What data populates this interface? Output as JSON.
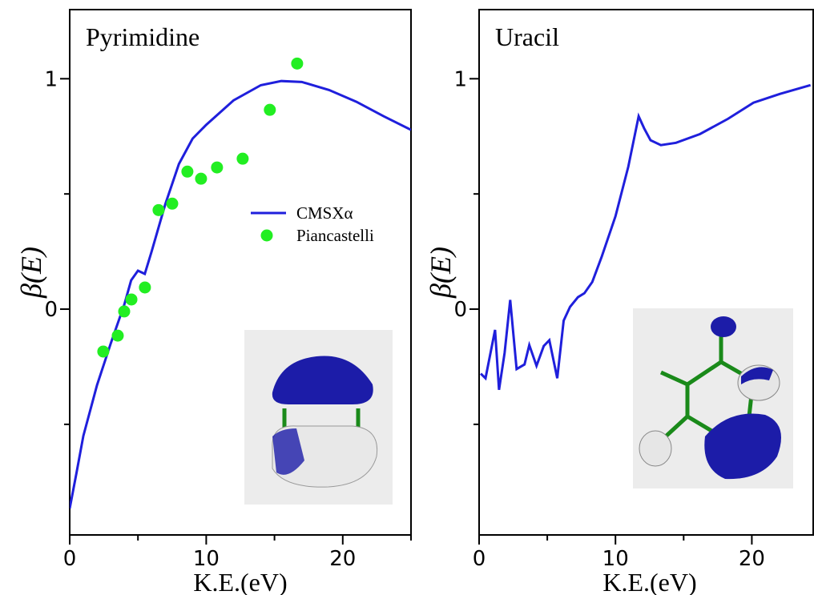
{
  "chart_data": [
    {
      "type": "line",
      "title": "Pyrimidine",
      "xlabel": "K.E.(eV)",
      "ylabel": "β(E)",
      "xlim": [
        0,
        25
      ],
      "xticks": [
        0,
        10,
        20
      ],
      "xminor": [
        5,
        15,
        25
      ],
      "ylim": [
        -0.98,
        1.3
      ],
      "yticks": [
        0,
        1
      ],
      "yminor": [
        -0.5,
        0.5
      ],
      "legend": "right",
      "series": [
        {
          "name": "CMSXα",
          "color": "#1f1fdc",
          "style": "line",
          "x": [
            0,
            0.5,
            1,
            2,
            3,
            4,
            4.5,
            5,
            5.5,
            6,
            7,
            8,
            9,
            10,
            12,
            14,
            15.5,
            17,
            19,
            21,
            23,
            25
          ],
          "values": [
            -0.865,
            -0.71,
            -0.55,
            -0.33,
            -0.15,
            0.02,
            0.125,
            0.167,
            0.153,
            0.25,
            0.455,
            0.63,
            0.74,
            0.8,
            0.906,
            0.972,
            0.99,
            0.986,
            0.951,
            0.9,
            0.837,
            0.778
          ]
        },
        {
          "name": "Piancastelli",
          "color": "#22ee22",
          "style": "markers",
          "x": [
            2.46,
            3.52,
            3.99,
            4.52,
            5.51,
            6.51,
            7.51,
            8.62,
            9.62,
            10.79,
            12.67,
            14.66,
            16.66
          ],
          "values": [
            -0.184,
            -0.115,
            -0.01,
            0.042,
            0.094,
            0.43,
            0.458,
            0.597,
            0.566,
            0.615,
            0.653,
            0.865,
            1.066
          ]
        }
      ]
    },
    {
      "type": "line",
      "title": "Uracil",
      "xlabel": "K.E.(eV)",
      "ylabel": "β(E)",
      "xlim": [
        0,
        24.5
      ],
      "xticks": [
        0,
        10,
        20
      ],
      "xminor": [
        5,
        15
      ],
      "ylim": [
        -0.98,
        1.3
      ],
      "yticks": [
        0,
        1
      ],
      "yminor": [
        -0.5,
        0.5
      ],
      "series": [
        {
          "color": "#1f1fdc",
          "style": "line",
          "x": [
            0.12,
            0.47,
            1.17,
            1.46,
            1.87,
            2.28,
            2.75,
            3.33,
            3.68,
            4.21,
            4.74,
            5.15,
            5.73,
            6.2,
            6.67,
            7.25,
            7.72,
            8.3,
            9.0,
            10.0,
            10.94,
            11.7,
            12.1,
            12.57,
            13.33,
            14.44,
            16.2,
            18.25,
            20.12,
            22.05,
            24.3
          ],
          "values": [
            -0.28,
            -0.3,
            -0.09,
            -0.35,
            -0.19,
            0.04,
            -0.26,
            -0.24,
            -0.156,
            -0.246,
            -0.16,
            -0.135,
            -0.3,
            -0.05,
            0.01,
            0.052,
            0.069,
            0.118,
            0.229,
            0.403,
            0.618,
            0.837,
            0.785,
            0.733,
            0.712,
            0.722,
            0.76,
            0.826,
            0.896,
            0.934,
            0.972
          ]
        }
      ]
    }
  ]
}
